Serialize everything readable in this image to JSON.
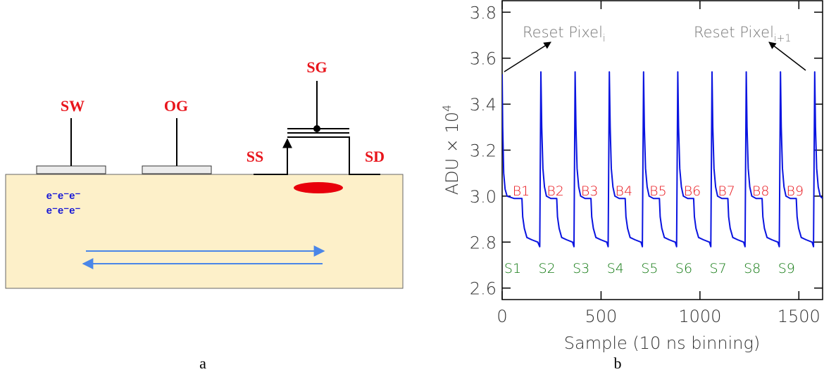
{
  "panel_a": {
    "label": "a",
    "sw": "SW",
    "og": "OG",
    "sg": "SG",
    "ss": "SS",
    "sd": "SD",
    "electrons": [
      "e⁻e⁻e⁻",
      "e⁻e⁻e⁻"
    ]
  },
  "chart_data": {
    "type": "line",
    "panel_label": "b",
    "xlabel": "Sample (10 ns binning)",
    "ylabel": "ADU × 10",
    "ylabel_exponent": "4",
    "xlim": [
      0,
      1620
    ],
    "ylim": [
      2.55,
      3.85
    ],
    "xticks": [
      0,
      500,
      1000,
      1500
    ],
    "yticks": [
      2.6,
      2.8,
      {
        "value": 3.0,
        "label": "3.0"
      },
      3.2,
      3.4,
      3.6,
      3.8
    ],
    "annotations": [
      {
        "text": "Reset Pixel",
        "subscript": "i"
      },
      {
        "text": "Reset Pixel",
        "subscript": "i+1"
      }
    ],
    "baseline_labels": [
      "B1",
      "B2",
      "B3",
      "B4",
      "B5",
      "B6",
      "B7",
      "B8",
      "B9"
    ],
    "signal_labels": [
      "S1",
      "S2",
      "S3",
      "S4",
      "S5",
      "S6",
      "S7",
      "S8",
      "S9"
    ],
    "series": [
      {
        "color": "#0a14e0",
        "x": [
          0,
          3,
          8,
          15,
          25,
          60,
          100,
          104,
          112,
          125,
          150,
          180,
          190,
          196,
          200,
          206,
          214,
          224,
          246,
          276,
          280,
          288,
          301,
          326,
          356,
          363,
          369,
          373,
          379,
          387,
          397,
          419,
          449,
          453,
          461,
          474,
          499,
          529,
          536,
          542,
          546,
          552,
          560,
          570,
          592,
          622,
          626,
          634,
          647,
          672,
          702,
          709,
          715,
          719,
          725,
          733,
          743,
          765,
          795,
          799,
          807,
          820,
          845,
          875,
          882,
          888,
          892,
          898,
          906,
          916,
          938,
          968,
          972,
          980,
          993,
          1018,
          1048,
          1055,
          1061,
          1065,
          1071,
          1079,
          1089,
          1111,
          1141,
          1145,
          1153,
          1166,
          1191,
          1221,
          1228,
          1234,
          1238,
          1244,
          1252,
          1262,
          1284,
          1314,
          1318,
          1326,
          1339,
          1364,
          1394,
          1401,
          1407,
          1411,
          1417,
          1425,
          1435,
          1457,
          1487,
          1491,
          1499,
          1512,
          1537,
          1567,
          1574,
          1580,
          1584,
          1590,
          1598,
          1608,
          1620
        ],
        "values": [
          3.53,
          3.3,
          3.1,
          3.03,
          3.0,
          2.99,
          2.99,
          2.91,
          2.86,
          2.82,
          2.81,
          2.8,
          2.78,
          3.54,
          3.3,
          3.12,
          3.04,
          3.0,
          2.99,
          2.99,
          2.91,
          2.86,
          2.82,
          2.81,
          2.8,
          2.78,
          3.54,
          3.3,
          3.12,
          3.04,
          3.0,
          2.99,
          2.99,
          2.91,
          2.86,
          2.82,
          2.81,
          2.8,
          2.78,
          3.54,
          3.3,
          3.12,
          3.04,
          3.0,
          2.99,
          2.99,
          2.91,
          2.86,
          2.82,
          2.81,
          2.8,
          2.78,
          3.54,
          3.3,
          3.12,
          3.04,
          3.0,
          2.99,
          2.99,
          2.91,
          2.86,
          2.82,
          2.81,
          2.8,
          2.78,
          3.54,
          3.3,
          3.12,
          3.04,
          3.0,
          2.99,
          2.99,
          2.91,
          2.86,
          2.82,
          2.81,
          2.8,
          2.78,
          3.54,
          3.3,
          3.12,
          3.04,
          3.0,
          2.99,
          2.99,
          2.91,
          2.86,
          2.82,
          2.81,
          2.8,
          2.78,
          3.54,
          3.3,
          3.12,
          3.04,
          3.0,
          2.99,
          2.99,
          2.91,
          2.86,
          2.82,
          2.81,
          2.8,
          2.78,
          3.54,
          3.3,
          3.12,
          3.04,
          3.0,
          2.99,
          2.99,
          2.91,
          2.86,
          2.82,
          2.81,
          2.8,
          2.78,
          3.54,
          3.3,
          3.12,
          3.04,
          3.0,
          2.99
        ]
      }
    ]
  }
}
